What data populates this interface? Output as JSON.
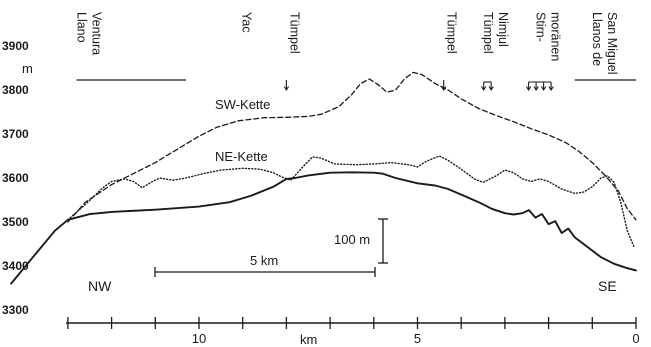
{
  "chart_data": {
    "type": "line",
    "y_axis": {
      "unit": "m",
      "range": [
        3300,
        3900
      ],
      "ticks": [
        3300,
        3400,
        3500,
        3600,
        3700,
        3800,
        3900
      ]
    },
    "x_axis": {
      "unit": "km",
      "range": [
        14.5,
        0
      ],
      "ticks": [
        10,
        5,
        0
      ],
      "minor_step": 1
    },
    "series": [
      {
        "name": "",
        "style": "solid",
        "points": [
          [
            14.3,
            3360
          ],
          [
            13.8,
            3420
          ],
          [
            13.3,
            3480
          ],
          [
            13.0,
            3505
          ],
          [
            12.5,
            3518
          ],
          [
            12.0,
            3523
          ],
          [
            11.0,
            3528
          ],
          [
            10.0,
            3535
          ],
          [
            9.3,
            3545
          ],
          [
            8.8,
            3560
          ],
          [
            8.3,
            3580
          ],
          [
            8.0,
            3598
          ],
          [
            7.8,
            3600
          ],
          [
            7.5,
            3606
          ],
          [
            7.0,
            3612
          ],
          [
            6.5,
            3613
          ],
          [
            6.0,
            3612
          ],
          [
            5.8,
            3610
          ],
          [
            5.5,
            3600
          ],
          [
            5.0,
            3588
          ],
          [
            4.6,
            3583
          ],
          [
            4.3,
            3575
          ],
          [
            3.9,
            3558
          ],
          [
            3.6,
            3545
          ],
          [
            3.3,
            3530
          ],
          [
            3.0,
            3520
          ],
          [
            2.8,
            3517
          ],
          [
            2.6,
            3520
          ],
          [
            2.45,
            3527
          ],
          [
            2.3,
            3510
          ],
          [
            2.15,
            3518
          ],
          [
            2.0,
            3495
          ],
          [
            1.85,
            3502
          ],
          [
            1.7,
            3475
          ],
          [
            1.55,
            3485
          ],
          [
            1.4,
            3465
          ],
          [
            1.2,
            3450
          ],
          [
            1.0,
            3435
          ],
          [
            0.8,
            3420
          ],
          [
            0.5,
            3405
          ],
          [
            0.2,
            3395
          ],
          [
            0.0,
            3390
          ]
        ]
      },
      {
        "name": "SW-Kette",
        "style": "dashed",
        "points": [
          [
            13.0,
            3500
          ],
          [
            12.6,
            3545
          ],
          [
            12.0,
            3585
          ],
          [
            11.5,
            3610
          ],
          [
            11.0,
            3635
          ],
          [
            10.5,
            3665
          ],
          [
            10.0,
            3695
          ],
          [
            9.6,
            3715
          ],
          [
            9.1,
            3730
          ],
          [
            8.5,
            3737
          ],
          [
            8.0,
            3738
          ],
          [
            7.5,
            3740
          ],
          [
            7.2,
            3745
          ],
          [
            6.8,
            3762
          ],
          [
            6.5,
            3790
          ],
          [
            6.3,
            3815
          ],
          [
            6.1,
            3825
          ],
          [
            5.9,
            3812
          ],
          [
            5.7,
            3795
          ],
          [
            5.5,
            3800
          ],
          [
            5.3,
            3825
          ],
          [
            5.1,
            3840
          ],
          [
            4.9,
            3835
          ],
          [
            4.6,
            3815
          ],
          [
            4.3,
            3800
          ],
          [
            4.0,
            3780
          ],
          [
            3.6,
            3758
          ],
          [
            3.2,
            3742
          ],
          [
            2.8,
            3728
          ],
          [
            2.4,
            3712
          ],
          [
            2.0,
            3698
          ],
          [
            1.6,
            3680
          ],
          [
            1.3,
            3660
          ],
          [
            1.0,
            3635
          ],
          [
            0.7,
            3605
          ],
          [
            0.4,
            3570
          ],
          [
            0.2,
            3530
          ],
          [
            0.0,
            3505
          ]
        ]
      },
      {
        "name": "NE-Kette",
        "style": "dotted",
        "points": [
          [
            13.0,
            3505
          ],
          [
            12.6,
            3540
          ],
          [
            12.2,
            3578
          ],
          [
            12.0,
            3592
          ],
          [
            11.7,
            3598
          ],
          [
            11.5,
            3592
          ],
          [
            11.3,
            3578
          ],
          [
            11.1,
            3590
          ],
          [
            10.9,
            3600
          ],
          [
            10.6,
            3595
          ],
          [
            10.3,
            3600
          ],
          [
            9.9,
            3610
          ],
          [
            9.5,
            3618
          ],
          [
            9.0,
            3622
          ],
          [
            8.6,
            3620
          ],
          [
            8.3,
            3612
          ],
          [
            8.1,
            3602
          ],
          [
            7.9,
            3595
          ],
          [
            7.6,
            3628
          ],
          [
            7.4,
            3648
          ],
          [
            7.2,
            3645
          ],
          [
            6.9,
            3632
          ],
          [
            6.4,
            3630
          ],
          [
            6.0,
            3632
          ],
          [
            5.6,
            3635
          ],
          [
            5.2,
            3630
          ],
          [
            5.0,
            3625
          ],
          [
            4.8,
            3638
          ],
          [
            4.5,
            3650
          ],
          [
            4.3,
            3640
          ],
          [
            4.0,
            3620
          ],
          [
            3.7,
            3598
          ],
          [
            3.5,
            3590
          ],
          [
            3.2,
            3605
          ],
          [
            3.0,
            3618
          ],
          [
            2.8,
            3612
          ],
          [
            2.6,
            3598
          ],
          [
            2.4,
            3592
          ],
          [
            2.2,
            3598
          ],
          [
            2.0,
            3592
          ],
          [
            1.7,
            3575
          ],
          [
            1.4,
            3565
          ],
          [
            1.2,
            3568
          ],
          [
            1.0,
            3580
          ],
          [
            0.8,
            3600
          ],
          [
            0.65,
            3605
          ],
          [
            0.5,
            3590
          ],
          [
            0.35,
            3545
          ],
          [
            0.2,
            3480
          ],
          [
            0.05,
            3445
          ]
        ]
      }
    ],
    "annotations": [
      {
        "text": "NW",
        "side": "left"
      },
      {
        "text": "SE",
        "side": "right"
      }
    ],
    "place_labels": [
      {
        "lines": [
          "Llano",
          "Ventura"
        ],
        "km": 12.7,
        "range_km": [
          12.8,
          10.3
        ]
      },
      {
        "lines": [
          "Yac"
        ],
        "km": 9.1
      },
      {
        "lines": [
          "Tümpel"
        ],
        "km": 8.0,
        "arrows": 1
      },
      {
        "lines": [
          "Tümpel"
        ],
        "km": 4.4,
        "arrows": 1
      },
      {
        "lines": [
          "Tümpel",
          "Nimjul"
        ],
        "km": 3.4,
        "arrows": 2
      },
      {
        "lines": [
          "Stirn-",
          "moränen"
        ],
        "km": 2.2,
        "arrows": 4
      },
      {
        "lines": [
          "Llanos de",
          "San Miguel"
        ],
        "km": 0.9,
        "range_km": [
          1.4,
          0.0
        ]
      }
    ],
    "scale_bars": [
      {
        "label": "5 km",
        "km_from": 11.5,
        "km_to": 6.5
      },
      {
        "label": "100 m",
        "height_m": 100
      }
    ]
  }
}
